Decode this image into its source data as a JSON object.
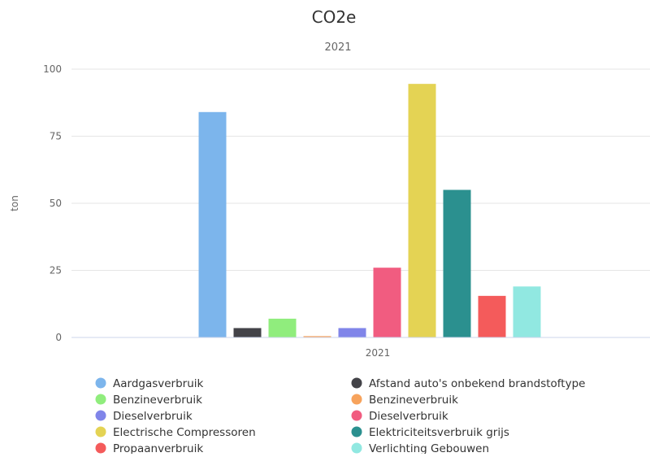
{
  "chart_data": {
    "type": "bar",
    "title": "CO2e",
    "subtitle": "2021",
    "xlabel": "",
    "ylabel": "ton",
    "ylim": [
      0,
      100
    ],
    "yticks": [
      0,
      25,
      50,
      75,
      100
    ],
    "categories": [
      "2021"
    ],
    "grid": true,
    "legend_position": "bottom",
    "series": [
      {
        "name": "Aardgasverbruik",
        "values": [
          84
        ],
        "color": "#7cb5ec"
      },
      {
        "name": "Afstand auto's onbekend brandstoftype",
        "values": [
          3.5
        ],
        "color": "#434348"
      },
      {
        "name": "Benzineverbruik",
        "values": [
          7
        ],
        "color": "#90ed7d"
      },
      {
        "name": "Benzineverbruik",
        "values": [
          0.5
        ],
        "color": "#f7a35c"
      },
      {
        "name": "Dieselverbruik",
        "values": [
          3.5
        ],
        "color": "#8085e9"
      },
      {
        "name": "Dieselverbruik",
        "values": [
          26
        ],
        "color": "#f15c80"
      },
      {
        "name": "Electrische Compressoren",
        "values": [
          94.5
        ],
        "color": "#e4d354"
      },
      {
        "name": "Elektriciteitsverbruik grijs",
        "values": [
          55
        ],
        "color": "#2b908f"
      },
      {
        "name": "Propaanverbruik",
        "values": [
          15.5
        ],
        "color": "#f45b5b"
      },
      {
        "name": "Verlichting Gebouwen",
        "values": [
          19
        ],
        "color": "#91e8e1"
      }
    ]
  }
}
